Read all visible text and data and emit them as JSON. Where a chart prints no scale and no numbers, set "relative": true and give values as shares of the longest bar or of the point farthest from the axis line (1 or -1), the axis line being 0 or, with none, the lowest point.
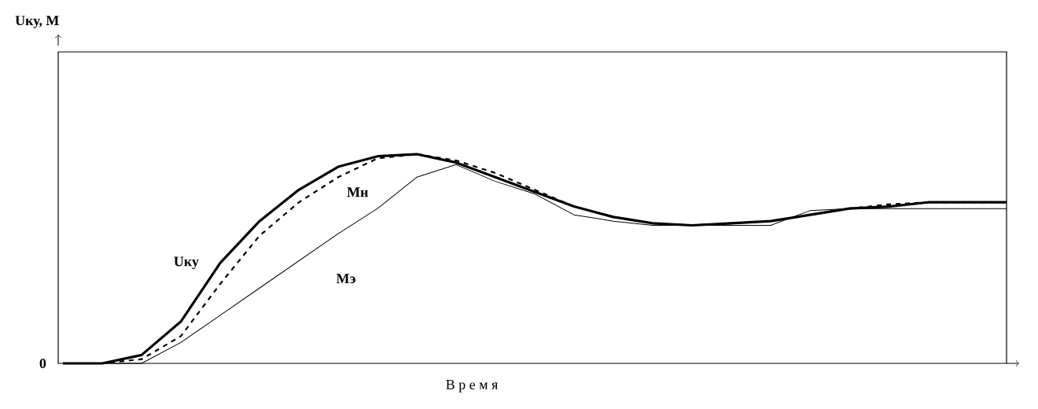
{
  "chart_data": {
    "type": "line",
    "relative": true,
    "xlabel": "В р е м я",
    "annotations": [
      "0",
      "Uку, М"
    ],
    "categories": [
      null,
      null,
      null,
      null,
      null,
      null,
      null,
      null,
      null,
      null,
      null,
      null,
      null,
      null,
      null,
      null,
      null,
      null,
      null,
      null,
      null,
      null,
      null,
      null,
      null
    ],
    "series": [
      {
        "name": "Uку",
        "color": "#000000",
        "line_style": "solid",
        "values": [
          0,
          0,
          0.04,
          0.2,
          0.48,
          0.68,
          0.83,
          0.94,
          0.99,
          1,
          0.96,
          0.89,
          0.82,
          0.75,
          0.7,
          0.67,
          0.66,
          0.67,
          0.68,
          0.71,
          0.74,
          0.75,
          0.77,
          0.77,
          0.77
        ]
      },
      {
        "name": "Мн",
        "color": "#000000",
        "line_style": "dashed",
        "values": [
          0,
          0,
          0.02,
          0.13,
          0.38,
          0.61,
          0.77,
          0.89,
          0.98,
          1,
          0.97,
          0.91,
          0.83,
          0.75,
          0.7,
          0.67,
          0.66,
          0.67,
          0.68,
          0.71,
          0.74,
          0.76,
          0.77,
          0.77,
          0.77
        ]
      },
      {
        "name": "Мэ",
        "color": "#000000",
        "line_style": "solid",
        "values": [
          0,
          0,
          0,
          0.1,
          0.23,
          0.36,
          0.49,
          0.62,
          0.74,
          0.89,
          0.95,
          0.87,
          0.81,
          0.71,
          0.68,
          0.66,
          0.66,
          0.66,
          0.66,
          0.73,
          0.74,
          0.74,
          0.74,
          0.74,
          0.74
        ]
      }
    ],
    "legend": false
  }
}
